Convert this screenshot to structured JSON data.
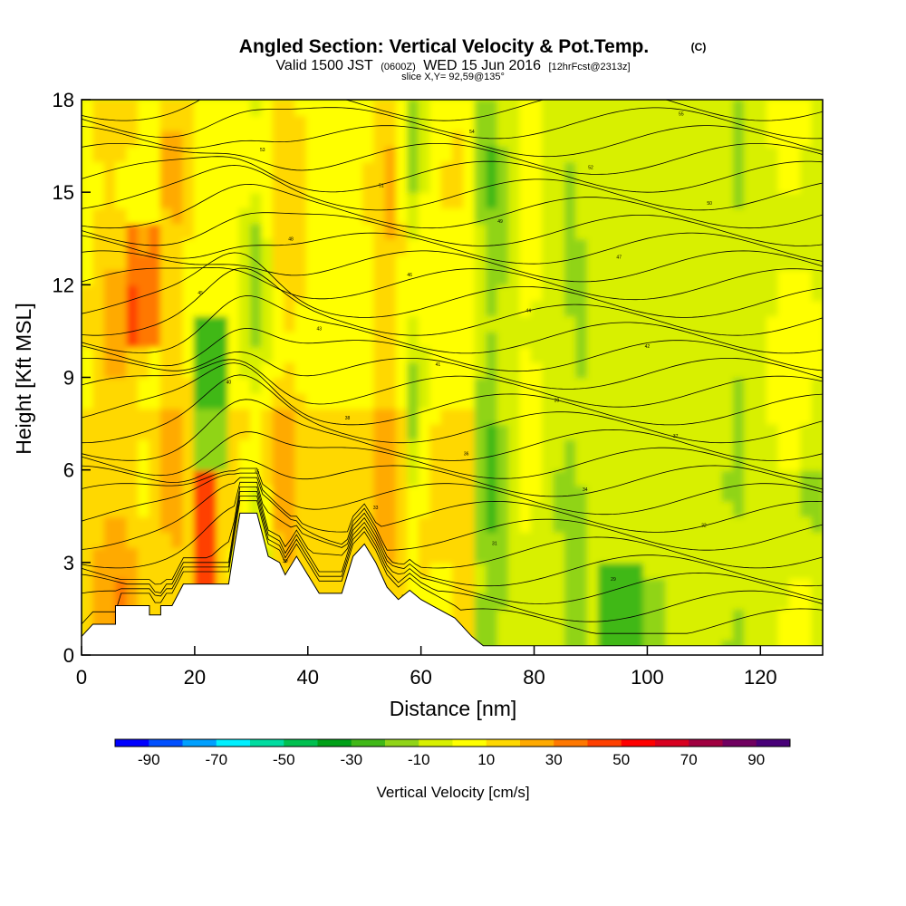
{
  "title": {
    "main": "Angled Section: Vertical Velocity & Pot.Temp.",
    "main_unit": "(C)",
    "valid_prefix": "Valid 1500 JST",
    "valid_utc": "(0600Z)",
    "valid_date": "WED 15 Jun 2016",
    "valid_fcst": "[12hrFcst@2313z]",
    "slice": "slice X,Y= 92,59@135°"
  },
  "chart_data": {
    "type": "heatmap",
    "xlabel": "Distance [nm]",
    "ylabel": "Height [Kft MSL]",
    "xlim": [
      0,
      131
    ],
    "ylim": [
      0,
      18
    ],
    "x_ticks": [
      0,
      20,
      40,
      60,
      80,
      100,
      120
    ],
    "y_ticks": [
      0,
      3,
      6,
      9,
      12,
      15,
      18
    ],
    "colorbar": {
      "label": "Vertical Velocity [cm/s]",
      "range": [
        -100,
        100
      ],
      "tick_values": [
        -90,
        -70,
        -50,
        -30,
        -10,
        10,
        30,
        50,
        70,
        90
      ],
      "colors": [
        "#0000ff",
        "#0050ff",
        "#00a0ff",
        "#00f0ff",
        "#00dca0",
        "#00c050",
        "#00a018",
        "#40b818",
        "#90d418",
        "#d8f000",
        "#ffff00",
        "#ffd800",
        "#ffaa00",
        "#ff7800",
        "#ff4000",
        "#ff0000",
        "#d80020",
        "#a00040",
        "#700060",
        "#480078"
      ]
    },
    "terrain": [
      [
        0,
        0.6
      ],
      [
        2,
        1.0
      ],
      [
        6,
        1.0
      ],
      [
        6,
        1.6
      ],
      [
        12,
        1.6
      ],
      [
        12,
        1.3
      ],
      [
        14,
        1.3
      ],
      [
        14,
        1.6
      ],
      [
        16,
        1.6
      ],
      [
        18,
        2.3
      ],
      [
        26,
        2.3
      ],
      [
        27,
        3.5
      ],
      [
        28,
        4.6
      ],
      [
        31,
        4.6
      ],
      [
        33,
        3.2
      ],
      [
        35,
        3.0
      ],
      [
        36,
        2.6
      ],
      [
        38,
        3.2
      ],
      [
        40,
        2.6
      ],
      [
        42,
        2.0
      ],
      [
        46,
        2.0
      ],
      [
        48,
        3.2
      ],
      [
        50,
        3.6
      ],
      [
        52,
        3.0
      ],
      [
        54,
        2.2
      ],
      [
        56,
        1.8
      ],
      [
        58,
        2.1
      ],
      [
        60,
        1.8
      ],
      [
        62,
        1.6
      ],
      [
        66,
        1.2
      ],
      [
        69,
        0.6
      ],
      [
        71,
        0.3
      ],
      [
        131,
        0.3
      ]
    ],
    "isentrope_label_values": [
      "27",
      "28",
      "29",
      "30",
      "31",
      "32",
      "33",
      "34",
      "35",
      "36",
      "37",
      "38",
      "39",
      "40",
      "41",
      "42",
      "43",
      "44",
      "45",
      "46",
      "47",
      "48",
      "49",
      "50",
      "51",
      "52",
      "53",
      "54",
      "55",
      "56"
    ]
  }
}
